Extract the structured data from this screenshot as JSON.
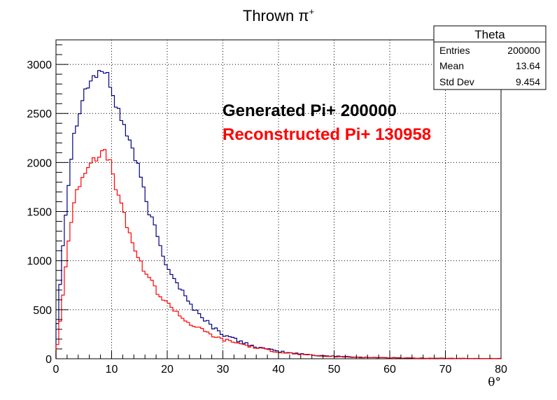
{
  "chart_data": {
    "type": "histogram",
    "title": "Thrown π⁺",
    "title_main": "Thrown π",
    "title_sup": "+",
    "xlabel": "θ°",
    "ylabel": "",
    "xlim": [
      0,
      80
    ],
    "ylim": [
      0,
      3250
    ],
    "grid": true,
    "x_ticks": [
      0,
      10,
      20,
      30,
      40,
      50,
      60,
      70,
      80
    ],
    "y_ticks": [
      0,
      500,
      1000,
      1500,
      2000,
      2500,
      3000
    ],
    "x_tick_labels": [
      "0",
      "10",
      "20",
      "30",
      "40",
      "50",
      "60",
      "70",
      "80"
    ],
    "y_tick_labels": [
      "0",
      "500",
      "1000",
      "1500",
      "2000",
      "2500",
      "3000"
    ],
    "bin_width": 0.5,
    "series": [
      {
        "name": "Generated Pi+",
        "color": "#000080",
        "x_bins": [
          0,
          1,
          2,
          3,
          4,
          5,
          6,
          7,
          8,
          9,
          10,
          11,
          12,
          13,
          14,
          15,
          16,
          17,
          18,
          19,
          20,
          21,
          22,
          23,
          24,
          25,
          26,
          27,
          28,
          29,
          30,
          32,
          34,
          36,
          38,
          40,
          42,
          44,
          46,
          48,
          50,
          55,
          60,
          65,
          70,
          75,
          80
        ],
        "values": [
          150,
          1000,
          1650,
          2200,
          2500,
          2700,
          2820,
          2880,
          2950,
          2900,
          2750,
          2550,
          2420,
          2250,
          2100,
          1900,
          1650,
          1450,
          1300,
          1100,
          950,
          850,
          750,
          660,
          560,
          500,
          440,
          390,
          330,
          290,
          250,
          200,
          160,
          120,
          95,
          75,
          60,
          48,
          38,
          30,
          25,
          15,
          10,
          6,
          4,
          2,
          2
        ]
      },
      {
        "name": "Reconstructed Pi+",
        "color": "#ff0000",
        "x_bins": [
          0,
          1,
          2,
          3,
          4,
          5,
          6,
          7,
          8,
          9,
          10,
          11,
          12,
          13,
          14,
          15,
          16,
          17,
          18,
          19,
          20,
          21,
          22,
          23,
          24,
          25,
          26,
          27,
          28,
          29,
          30,
          32,
          34,
          36,
          38,
          40,
          42,
          44,
          46,
          48,
          50,
          55,
          60,
          65,
          70,
          75,
          80
        ],
        "values": [
          30,
          500,
          1100,
          1500,
          1750,
          1900,
          2000,
          2050,
          2100,
          2080,
          1950,
          1700,
          1500,
          1300,
          1150,
          1000,
          900,
          800,
          700,
          620,
          560,
          520,
          460,
          400,
          360,
          330,
          300,
          270,
          240,
          215,
          195,
          170,
          140,
          110,
          90,
          70,
          56,
          44,
          35,
          28,
          22,
          14,
          9,
          6,
          4,
          2,
          2
        ]
      }
    ],
    "annotations": [
      {
        "text": "Generated Pi+ 200000",
        "color": "#000000"
      },
      {
        "text": "Reconstructed Pi+ 130958",
        "color": "#ff0000"
      }
    ],
    "stats_box": {
      "title": "Theta",
      "rows": [
        {
          "label": "Entries",
          "value": "200000"
        },
        {
          "label": "Mean",
          "value": "13.64"
        },
        {
          "label": "Std Dev",
          "value": "9.454"
        }
      ]
    }
  }
}
